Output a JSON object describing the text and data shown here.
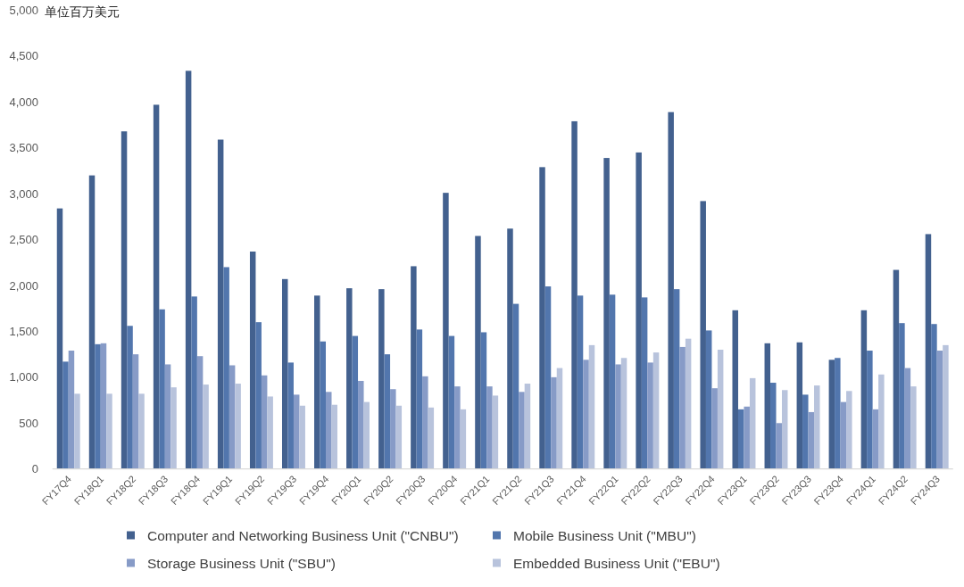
{
  "chart_data": {
    "type": "bar",
    "ylabel": "单位百万美元",
    "categories": [
      "FY17Q4",
      "FY18Q1",
      "FY18Q2",
      "FY18Q3",
      "FY18Q4",
      "FY19Q1",
      "FY19Q2",
      "FY19Q3",
      "FY19Q4",
      "FY20Q1",
      "FY20Q2",
      "FY20Q3",
      "FY20Q4",
      "FY21Q1",
      "FY21Q2",
      "FY21Q3",
      "FY21Q4",
      "FY22Q1",
      "FY22Q2",
      "FY22Q3",
      "FY22Q4",
      "FY23Q1",
      "FY23Q2",
      "FY23Q3",
      "FY23Q4",
      "FY24Q1",
      "FY24Q2",
      "FY24Q3"
    ],
    "series": [
      {
        "name": "Computer and Networking Business Unit (\"CNBU\")",
        "color": "#43618f",
        "values": [
          2840,
          3200,
          3680,
          3970,
          4340,
          3590,
          2370,
          2070,
          1890,
          1970,
          1960,
          2210,
          3010,
          2540,
          2620,
          3290,
          3790,
          3390,
          3450,
          3890,
          2920,
          1730,
          1370,
          1380,
          1190,
          1730,
          2170,
          2560
        ]
      },
      {
        "name": "Mobile Business Unit (\"MBU\")",
        "color": "#5276ad",
        "values": [
          1170,
          1360,
          1560,
          1740,
          1880,
          2200,
          1600,
          1160,
          1390,
          1450,
          1250,
          1520,
          1450,
          1490,
          1800,
          1990,
          1890,
          1900,
          1870,
          1960,
          1510,
          650,
          940,
          810,
          1210,
          1290,
          1590,
          1580
        ]
      },
      {
        "name": "Storage Business Unit (\"SBU\")",
        "color": "#879bc7",
        "values": [
          1290,
          1370,
          1250,
          1140,
          1230,
          1130,
          1020,
          810,
          840,
          960,
          870,
          1010,
          900,
          900,
          840,
          1000,
          1190,
          1140,
          1160,
          1330,
          880,
          680,
          500,
          620,
          730,
          650,
          1100,
          1290
        ]
      },
      {
        "name": "Embedded Business Unit (\"EBU\")",
        "color": "#b8c3dc",
        "values": [
          820,
          820,
          820,
          890,
          920,
          930,
          790,
          690,
          700,
          730,
          690,
          670,
          650,
          800,
          930,
          1100,
          1350,
          1210,
          1270,
          1420,
          1300,
          990,
          860,
          910,
          850,
          1030,
          900,
          1350
        ]
      }
    ],
    "ylim": [
      0,
      5000
    ],
    "yticks": [
      0,
      500,
      {
        "value": 1000,
        "label": "1,000"
      },
      {
        "value": 1500,
        "label": "1,500"
      },
      {
        "value": 2000,
        "label": "2,000"
      },
      {
        "value": 2500,
        "label": "2,500"
      },
      {
        "value": 3000,
        "label": "3,000"
      },
      {
        "value": 3500,
        "label": "3,500"
      },
      {
        "value": 4000,
        "label": "4,000"
      },
      {
        "value": 4500,
        "label": "4,500"
      },
      {
        "value": 5000,
        "label": "5,000"
      }
    ],
    "legend": "bottom"
  }
}
